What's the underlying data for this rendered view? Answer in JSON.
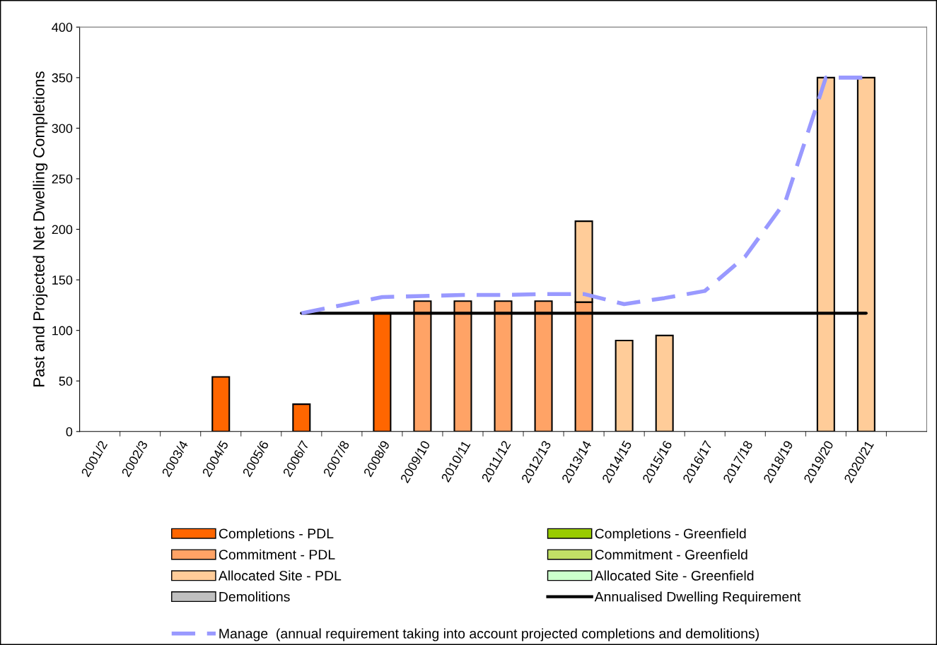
{
  "chart_data": {
    "type": "bar",
    "stacked": true,
    "ylabel": "Past and Projected Net Dwelling Completions",
    "categories": [
      "2001/2",
      "2002/3",
      "2003/4",
      "2004/5",
      "2005/6",
      "2006/7",
      "2007/8",
      "2008/9",
      "2009/10",
      "2010/11",
      "2011/12",
      "2012/13",
      "2013/14",
      "2014/15",
      "2015/16",
      "2016/17",
      "2017/18",
      "2018/19",
      "2019/20",
      "2020/21",
      null
    ],
    "ylim": [
      0,
      400
    ],
    "yticks": [
      0,
      50,
      100,
      150,
      200,
      250,
      300,
      350,
      400
    ],
    "grid": false,
    "legend": "bottom",
    "series": [
      {
        "name": "Completions - PDL",
        "color": "#ff6600",
        "values": [
          null,
          null,
          null,
          54,
          null,
          27,
          null,
          117,
          null,
          null,
          null,
          null,
          null,
          null,
          null,
          null,
          null,
          null,
          null,
          null,
          null
        ]
      },
      {
        "name": "Completions - Greenfield",
        "color": "#99cc00",
        "values": [
          null,
          null,
          null,
          null,
          null,
          null,
          null,
          null,
          null,
          null,
          null,
          null,
          null,
          null,
          null,
          null,
          null,
          null,
          null,
          null,
          null
        ]
      },
      {
        "name": "Commitment - PDL",
        "color": "#ffa366",
        "values": [
          null,
          null,
          null,
          null,
          null,
          null,
          null,
          null,
          129,
          129,
          129,
          129,
          128,
          null,
          null,
          null,
          null,
          null,
          null,
          null,
          null
        ]
      },
      {
        "name": "Commitment - Greenfield",
        "color": "#c2e066",
        "values": [
          null,
          null,
          null,
          null,
          null,
          null,
          null,
          null,
          null,
          null,
          null,
          null,
          null,
          null,
          null,
          null,
          null,
          null,
          null,
          null,
          null
        ]
      },
      {
        "name": "Allocated Site - PDL",
        "color": "#ffcc99",
        "values": [
          null,
          null,
          null,
          null,
          null,
          null,
          null,
          null,
          null,
          null,
          null,
          null,
          80,
          90,
          95,
          null,
          null,
          null,
          350,
          350,
          null
        ]
      },
      {
        "name": "Allocated Site - Greenfield",
        "color": "#ccffcc",
        "values": [
          null,
          null,
          null,
          null,
          null,
          null,
          null,
          null,
          null,
          null,
          null,
          null,
          null,
          null,
          null,
          null,
          null,
          null,
          null,
          null,
          null
        ]
      },
      {
        "name": "Demolitions",
        "color": "#c0c0c0",
        "values": [
          null,
          null,
          null,
          null,
          null,
          null,
          null,
          null,
          null,
          null,
          null,
          null,
          null,
          null,
          null,
          null,
          null,
          null,
          null,
          null,
          null
        ]
      },
      {
        "name": "Annualised Dwelling Requirement",
        "type": "line",
        "color": "#000000",
        "line_style": "solid",
        "marker": "none",
        "values": [
          null,
          null,
          null,
          null,
          null,
          117,
          117,
          117,
          117,
          117,
          117,
          117,
          117,
          117,
          117,
          117,
          117,
          117,
          117,
          117,
          null
        ]
      },
      {
        "name": "Manage  (annual requirement taking into account projected completions and demolitions)",
        "type": "line",
        "color": "#9999ff",
        "line_style": "dashed",
        "marker": "none",
        "values": [
          null,
          null,
          null,
          null,
          null,
          117,
          125,
          133,
          134,
          135,
          135,
          136,
          136,
          126,
          132,
          139,
          173,
          228,
          350,
          350,
          null
        ]
      }
    ]
  }
}
